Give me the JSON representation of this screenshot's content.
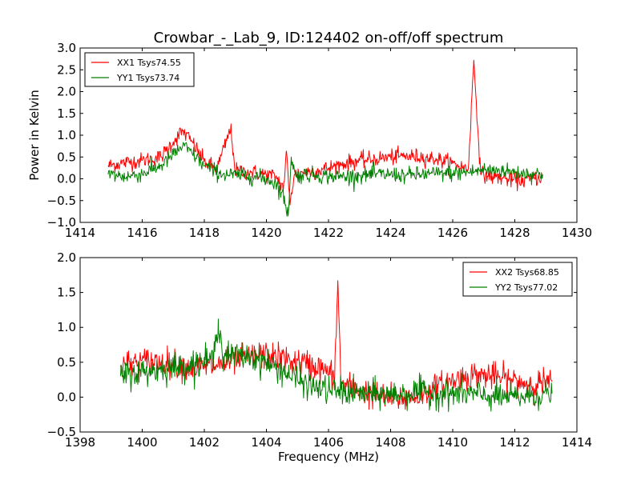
{
  "figure": {
    "title": "Crowbar_-_Lab_9, ID:124402 on-off/off spectrum",
    "ylabel": "Power in Kelvin",
    "xlabel": "Frequency (MHz)"
  },
  "chart_data": [
    {
      "type": "line",
      "title": "Crowbar_-_Lab_9, ID:124402 on-off/off spectrum",
      "xlabel": "",
      "ylabel": "Power in Kelvin",
      "xlim": [
        1414,
        1430
      ],
      "ylim": [
        -1.0,
        3.0
      ],
      "xticks": [
        "1414",
        "1416",
        "1418",
        "1420",
        "1422",
        "1424",
        "1426",
        "1428",
        "1430"
      ],
      "yticks": [
        "−1.0",
        "−0.5",
        "0.0",
        "0.5",
        "1.0",
        "1.5",
        "2.0",
        "2.5",
        "3.0"
      ],
      "grid": false,
      "legend_position": "top-left",
      "series": [
        {
          "name": "XX1 Tsys74.55",
          "color": "#ff0000",
          "x": [
            1414.9,
            1415.5,
            1416.0,
            1416.6,
            1417.0,
            1417.3,
            1417.6,
            1418.0,
            1418.4,
            1418.85,
            1419.0,
            1419.5,
            1420.0,
            1420.3,
            1420.55,
            1420.65,
            1420.75,
            1420.9,
            1421.2,
            1421.6,
            1422.0,
            1422.5,
            1423.0,
            1423.5,
            1424.0,
            1424.5,
            1425.0,
            1425.5,
            1426.0,
            1426.5,
            1426.68,
            1426.9,
            1427.3,
            1427.7,
            1428.1,
            1428.5,
            1428.9
          ],
          "y": [
            0.3,
            0.38,
            0.42,
            0.5,
            0.85,
            1.1,
            0.85,
            0.4,
            0.22,
            1.15,
            0.18,
            0.15,
            0.1,
            0.05,
            -0.2,
            0.6,
            -0.55,
            0.1,
            0.15,
            0.18,
            0.25,
            0.35,
            0.42,
            0.45,
            0.5,
            0.52,
            0.5,
            0.45,
            0.35,
            0.22,
            2.72,
            0.1,
            0.05,
            0.0,
            -0.05,
            0.0,
            0.05
          ]
        },
        {
          "name": "YY1 Tsys73.74",
          "color": "#008000",
          "x": [
            1414.9,
            1415.5,
            1416.0,
            1416.6,
            1417.0,
            1417.3,
            1417.6,
            1418.0,
            1418.5,
            1419.0,
            1419.5,
            1420.0,
            1420.3,
            1420.55,
            1420.7,
            1420.8,
            1420.95,
            1421.2,
            1421.6,
            1422.0,
            1422.5,
            1423.0,
            1423.5,
            1424.0,
            1424.5,
            1425.0,
            1425.5,
            1426.0,
            1426.5,
            1427.0,
            1427.5,
            1428.0,
            1428.5,
            1428.9
          ],
          "y": [
            0.1,
            0.05,
            0.12,
            0.3,
            0.55,
            0.75,
            0.6,
            0.3,
            0.12,
            0.08,
            0.06,
            0.0,
            -0.1,
            -0.4,
            -0.85,
            0.5,
            0.05,
            0.1,
            0.08,
            0.06,
            0.05,
            0.08,
            0.1,
            0.1,
            0.08,
            0.1,
            0.12,
            0.12,
            0.15,
            0.2,
            0.2,
            0.15,
            0.12,
            0.1
          ]
        }
      ]
    },
    {
      "type": "line",
      "title": "",
      "xlabel": "Frequency (MHz)",
      "ylabel": "",
      "xlim": [
        1398,
        1414
      ],
      "ylim": [
        -0.5,
        2.0
      ],
      "xticks": [
        "1398",
        "1400",
        "1402",
        "1404",
        "1406",
        "1408",
        "1410",
        "1412",
        "1414"
      ],
      "yticks": [
        "−0.5",
        "0.0",
        "0.5",
        "1.0",
        "1.5",
        "2.0"
      ],
      "grid": false,
      "legend_position": "top-right",
      "series": [
        {
          "name": "XX2 Tsys68.85",
          "color": "#ff0000",
          "x": [
            1399.3,
            1399.8,
            1400.3,
            1400.8,
            1401.3,
            1401.8,
            1402.3,
            1402.8,
            1403.3,
            1403.8,
            1404.3,
            1404.8,
            1405.3,
            1405.8,
            1406.2,
            1406.3,
            1406.4,
            1406.8,
            1407.3,
            1407.8,
            1408.3,
            1408.8,
            1409.3,
            1409.8,
            1410.3,
            1410.8,
            1411.3,
            1411.8,
            1412.3,
            1412.8,
            1413.2
          ],
          "y": [
            0.45,
            0.5,
            0.52,
            0.5,
            0.45,
            0.42,
            0.45,
            0.5,
            0.55,
            0.6,
            0.58,
            0.52,
            0.48,
            0.4,
            0.3,
            1.67,
            0.2,
            0.12,
            0.05,
            0.0,
            -0.02,
            0.0,
            0.1,
            0.2,
            0.28,
            0.32,
            0.3,
            0.25,
            0.2,
            0.2,
            0.22
          ]
        },
        {
          "name": "YY2 Tsys77.02",
          "color": "#008000",
          "x": [
            1399.3,
            1399.8,
            1400.3,
            1400.8,
            1401.3,
            1401.8,
            1402.3,
            1402.45,
            1402.6,
            1403.0,
            1403.5,
            1404.0,
            1404.5,
            1405.0,
            1405.5,
            1406.0,
            1406.5,
            1407.0,
            1407.5,
            1408.0,
            1408.5,
            1409.0,
            1409.5,
            1410.0,
            1410.5,
            1411.0,
            1411.5,
            1412.0,
            1412.5,
            1413.2
          ],
          "y": [
            0.3,
            0.35,
            0.38,
            0.42,
            0.45,
            0.5,
            0.55,
            1.12,
            0.58,
            0.6,
            0.58,
            0.5,
            0.38,
            0.25,
            0.15,
            0.1,
            0.08,
            0.05,
            0.05,
            0.03,
            0.05,
            0.08,
            0.05,
            0.05,
            0.05,
            0.02,
            0.0,
            0.0,
            0.02,
            0.05
          ]
        }
      ]
    }
  ]
}
